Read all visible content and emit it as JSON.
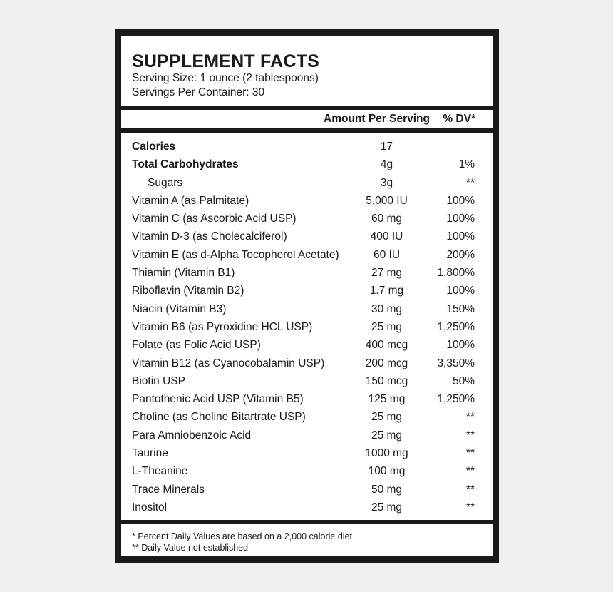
{
  "title": "SUPPLEMENT FACTS",
  "serving_size": "Serving Size: 1 ounce (2 tablespoons)",
  "servings_per_container": "Servings Per Container: 30",
  "columns": {
    "amount": "Amount Per Serving",
    "dv": "% DV*"
  },
  "rows": [
    {
      "name": "Calories",
      "amount": "17",
      "dv": "",
      "bold": true
    },
    {
      "name": "Total Carbohydrates",
      "amount": "4g",
      "dv": "1%",
      "bold": true
    },
    {
      "name": "Sugars",
      "amount": "3g",
      "dv": "**",
      "indent": true
    },
    {
      "name": "Vitamin A (as Palmitate)",
      "amount": "5,000 IU",
      "dv": "100%"
    },
    {
      "name": "Vitamin C (as Ascorbic Acid USP)",
      "amount": "60 mg",
      "dv": "100%"
    },
    {
      "name": "Vitamin D-3 (as Cholecalciferol)",
      "amount": "400 IU",
      "dv": "100%"
    },
    {
      "name": "Vitamin E (as d-Alpha Tocopherol Acetate)",
      "amount": "60 IU",
      "dv": "200%"
    },
    {
      "name": "Thiamin (Vitamin B1)",
      "amount": "27 mg",
      "dv": "1,800%"
    },
    {
      "name": "Riboflavin (Vitamin B2)",
      "amount": "1.7 mg",
      "dv": "100%"
    },
    {
      "name": "Niacin (Vitamin B3)",
      "amount": "30 mg",
      "dv": "150%"
    },
    {
      "name": "Vitamin B6 (as Pyroxidine HCL USP)",
      "amount": "25 mg",
      "dv": "1,250%"
    },
    {
      "name": "Folate (as Folic Acid USP)",
      "amount": "400 mcg",
      "dv": "100%"
    },
    {
      "name": "Vitamin B12 (as Cyanocobalamin USP)",
      "amount": "200 mcg",
      "dv": "3,350%"
    },
    {
      "name": "Biotin USP",
      "amount": "150 mcg",
      "dv": "50%"
    },
    {
      "name": "Pantothenic Acid USP (Vitamin B5)",
      "amount": "125 mg",
      "dv": "1,250%"
    },
    {
      "name": "Choline (as Choline Bitartrate USP)",
      "amount": "25 mg",
      "dv": "**"
    },
    {
      "name": "Para Amniobenzoic Acid",
      "amount": "25 mg",
      "dv": "**"
    },
    {
      "name": "Taurine",
      "amount": "1000 mg",
      "dv": "**"
    },
    {
      "name": "L-Theanine",
      "amount": "100 mg",
      "dv": "**"
    },
    {
      "name": "Trace Minerals",
      "amount": "50 mg",
      "dv": "**"
    },
    {
      "name": "Inositol",
      "amount": "25 mg",
      "dv": "**"
    }
  ],
  "footnotes": [
    "* Percent Daily Values are based on a 2,000 calorie diet",
    "** Daily Value not established"
  ]
}
